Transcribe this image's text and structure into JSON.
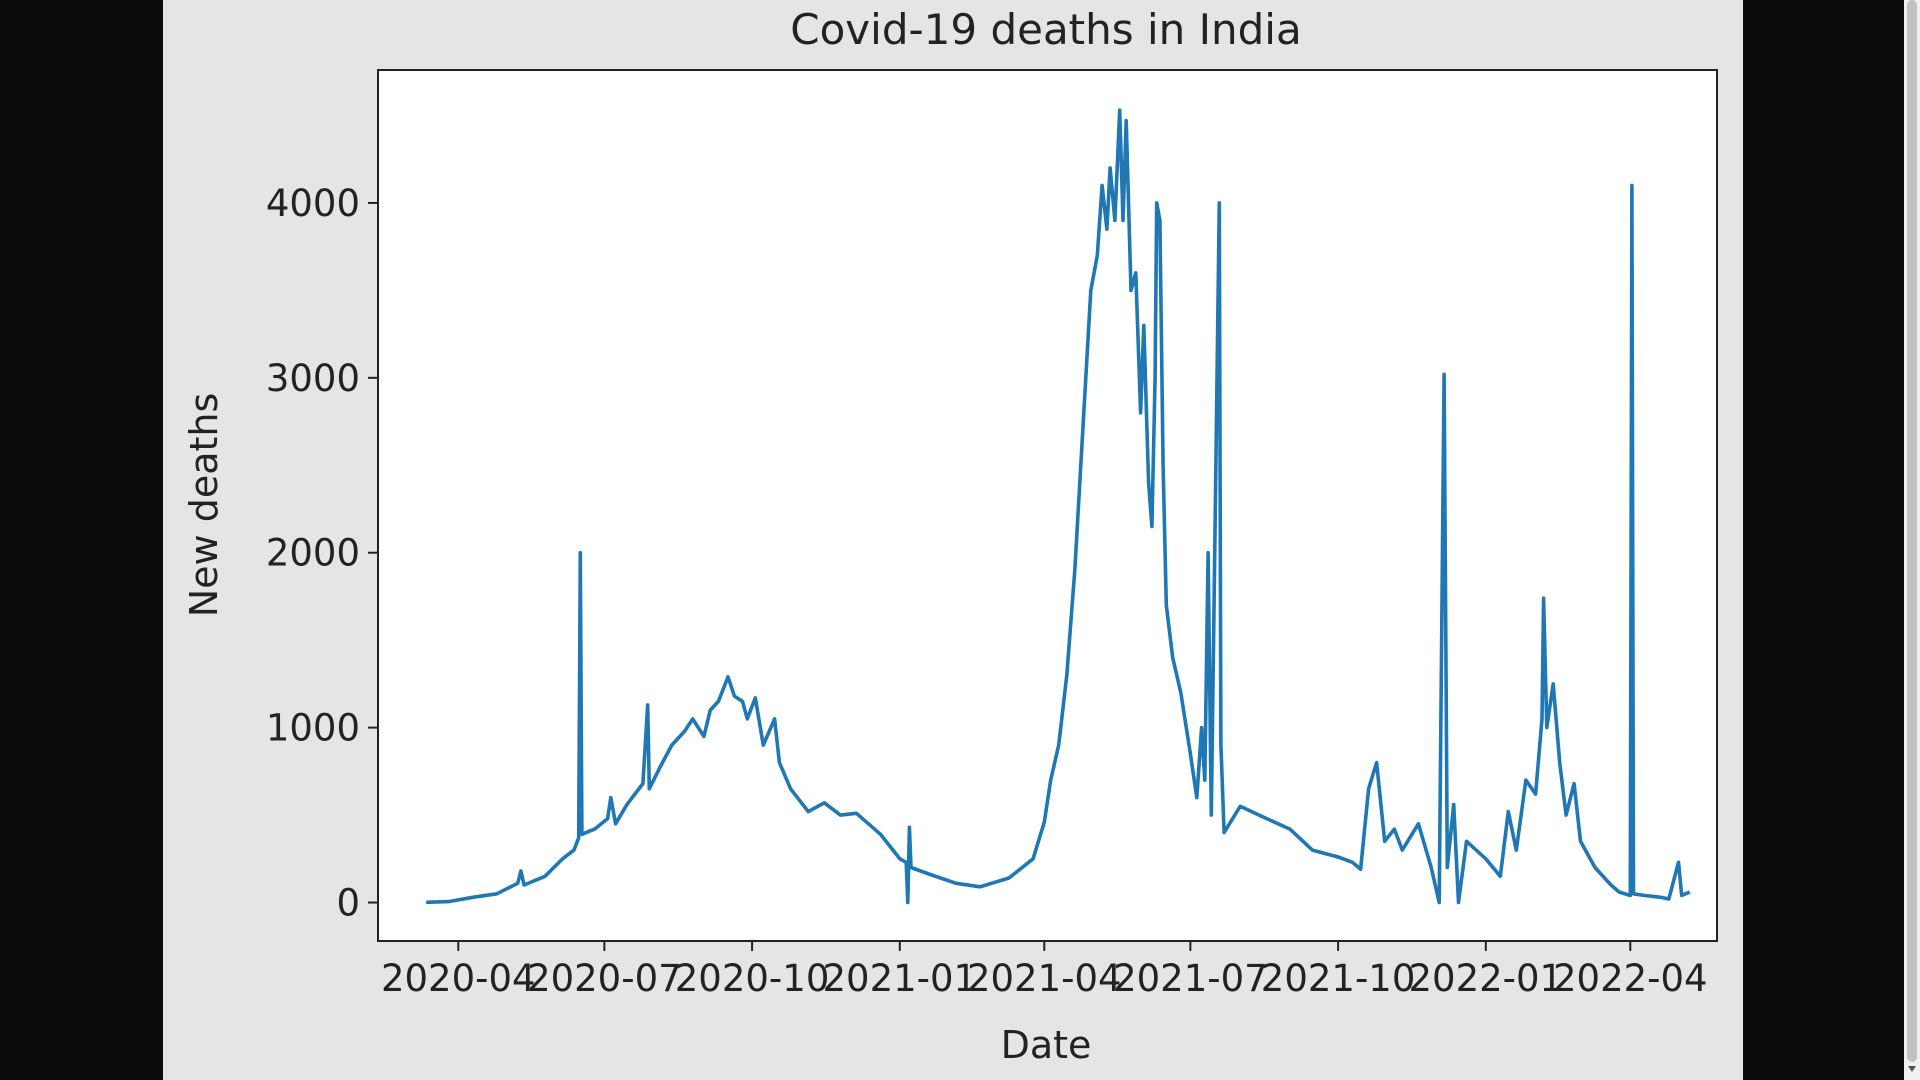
{
  "chart_data": {
    "type": "line",
    "title": "Covid-19 deaths in India",
    "xlabel": "Date",
    "ylabel": "New deaths",
    "ylim": [
      -220,
      4760
    ],
    "xlim": [
      "2020-02-11",
      "2022-05-25"
    ],
    "yticks": [
      0,
      1000,
      2000,
      3000,
      4000
    ],
    "xticks": [
      "2020-04",
      "2020-07",
      "2020-10",
      "2021-01",
      "2021-04",
      "2021-07",
      "2021-10",
      "2022-01",
      "2022-04"
    ],
    "grid": false,
    "line_color": "#1f77b4",
    "series": [
      {
        "values": [
          [
            "2020-03-12",
            1
          ],
          [
            "2020-03-26",
            5
          ],
          [
            "2020-04-10",
            30
          ],
          [
            "2020-04-25",
            50
          ],
          [
            "2020-05-08",
            110
          ],
          [
            "2020-05-10",
            180
          ],
          [
            "2020-05-12",
            100
          ],
          [
            "2020-05-25",
            150
          ],
          [
            "2020-06-05",
            250
          ],
          [
            "2020-06-12",
            300
          ],
          [
            "2020-06-15",
            370
          ],
          [
            "2020-06-16",
            2000
          ],
          [
            "2020-06-17",
            390
          ],
          [
            "2020-06-25",
            420
          ],
          [
            "2020-07-03",
            480
          ],
          [
            "2020-07-05",
            600
          ],
          [
            "2020-07-08",
            450
          ],
          [
            "2020-07-15",
            560
          ],
          [
            "2020-07-20",
            620
          ],
          [
            "2020-07-25",
            680
          ],
          [
            "2020-07-28",
            1130
          ],
          [
            "2020-07-29",
            650
          ],
          [
            "2020-08-05",
            780
          ],
          [
            "2020-08-12",
            900
          ],
          [
            "2020-08-20",
            980
          ],
          [
            "2020-08-25",
            1050
          ],
          [
            "2020-09-01",
            950
          ],
          [
            "2020-09-05",
            1100
          ],
          [
            "2020-09-10",
            1150
          ],
          [
            "2020-09-16",
            1290
          ],
          [
            "2020-09-20",
            1180
          ],
          [
            "2020-09-25",
            1150
          ],
          [
            "2020-09-28",
            1050
          ],
          [
            "2020-10-03",
            1170
          ],
          [
            "2020-10-08",
            900
          ],
          [
            "2020-10-15",
            1050
          ],
          [
            "2020-10-18",
            800
          ],
          [
            "2020-10-25",
            650
          ],
          [
            "2020-11-05",
            520
          ],
          [
            "2020-11-15",
            570
          ],
          [
            "2020-11-25",
            500
          ],
          [
            "2020-12-05",
            510
          ],
          [
            "2020-12-20",
            390
          ],
          [
            "2021-01-01",
            250
          ],
          [
            "2021-01-05",
            230
          ],
          [
            "2021-01-06",
            0
          ],
          [
            "2021-01-07",
            430
          ],
          [
            "2021-01-08",
            200
          ],
          [
            "2021-01-20",
            160
          ],
          [
            "2021-02-05",
            110
          ],
          [
            "2021-02-20",
            90
          ],
          [
            "2021-03-10",
            140
          ],
          [
            "2021-03-25",
            250
          ],
          [
            "2021-04-01",
            460
          ],
          [
            "2021-04-05",
            700
          ],
          [
            "2021-04-10",
            900
          ],
          [
            "2021-04-15",
            1300
          ],
          [
            "2021-04-20",
            1900
          ],
          [
            "2021-04-25",
            2700
          ],
          [
            "2021-04-30",
            3500
          ],
          [
            "2021-05-04",
            3700
          ],
          [
            "2021-05-07",
            4100
          ],
          [
            "2021-05-10",
            3850
          ],
          [
            "2021-05-12",
            4200
          ],
          [
            "2021-05-15",
            3900
          ],
          [
            "2021-05-18",
            4530
          ],
          [
            "2021-05-20",
            3900
          ],
          [
            "2021-05-22",
            4470
          ],
          [
            "2021-05-25",
            3500
          ],
          [
            "2021-05-28",
            3600
          ],
          [
            "2021-05-31",
            2800
          ],
          [
            "2021-06-02",
            3300
          ],
          [
            "2021-06-05",
            2400
          ],
          [
            "2021-06-07",
            2150
          ],
          [
            "2021-06-09",
            3000
          ],
          [
            "2021-06-10",
            4000
          ],
          [
            "2021-06-12",
            3900
          ],
          [
            "2021-06-14",
            2500
          ],
          [
            "2021-06-16",
            1700
          ],
          [
            "2021-06-20",
            1400
          ],
          [
            "2021-06-25",
            1200
          ],
          [
            "2021-07-01",
            850
          ],
          [
            "2021-07-05",
            600
          ],
          [
            "2021-07-08",
            1000
          ],
          [
            "2021-07-10",
            700
          ],
          [
            "2021-07-12",
            2000
          ],
          [
            "2021-07-14",
            500
          ],
          [
            "2021-07-19",
            4000
          ],
          [
            "2021-07-20",
            900
          ],
          [
            "2021-07-22",
            400
          ],
          [
            "2021-08-01",
            550
          ],
          [
            "2021-08-15",
            490
          ],
          [
            "2021-09-01",
            420
          ],
          [
            "2021-09-15",
            300
          ],
          [
            "2021-10-01",
            260
          ],
          [
            "2021-10-10",
            230
          ],
          [
            "2021-10-15",
            190
          ],
          [
            "2021-10-20",
            650
          ],
          [
            "2021-10-25",
            800
          ],
          [
            "2021-10-30",
            350
          ],
          [
            "2021-11-05",
            420
          ],
          [
            "2021-11-10",
            300
          ],
          [
            "2021-11-20",
            450
          ],
          [
            "2021-11-28",
            200
          ],
          [
            "2021-12-03",
            0
          ],
          [
            "2021-12-06",
            3020
          ],
          [
            "2021-12-08",
            200
          ],
          [
            "2021-12-12",
            560
          ],
          [
            "2021-12-15",
            0
          ],
          [
            "2021-12-20",
            350
          ],
          [
            "2022-01-01",
            250
          ],
          [
            "2022-01-10",
            150
          ],
          [
            "2022-01-15",
            520
          ],
          [
            "2022-01-20",
            300
          ],
          [
            "2022-01-26",
            700
          ],
          [
            "2022-02-01",
            620
          ],
          [
            "2022-02-05",
            1050
          ],
          [
            "2022-02-06",
            1740
          ],
          [
            "2022-02-08",
            1000
          ],
          [
            "2022-02-12",
            1250
          ],
          [
            "2022-02-16",
            800
          ],
          [
            "2022-02-20",
            500
          ],
          [
            "2022-02-25",
            680
          ],
          [
            "2022-03-01",
            350
          ],
          [
            "2022-03-10",
            200
          ],
          [
            "2022-03-20",
            100
          ],
          [
            "2022-03-25",
            60
          ],
          [
            "2022-04-01",
            40
          ],
          [
            "2022-04-02",
            4100
          ],
          [
            "2022-04-03",
            50
          ],
          [
            "2022-04-10",
            40
          ],
          [
            "2022-04-20",
            30
          ],
          [
            "2022-04-25",
            20
          ],
          [
            "2022-05-01",
            230
          ],
          [
            "2022-05-03",
            40
          ],
          [
            "2022-05-08",
            60
          ]
        ]
      }
    ]
  }
}
